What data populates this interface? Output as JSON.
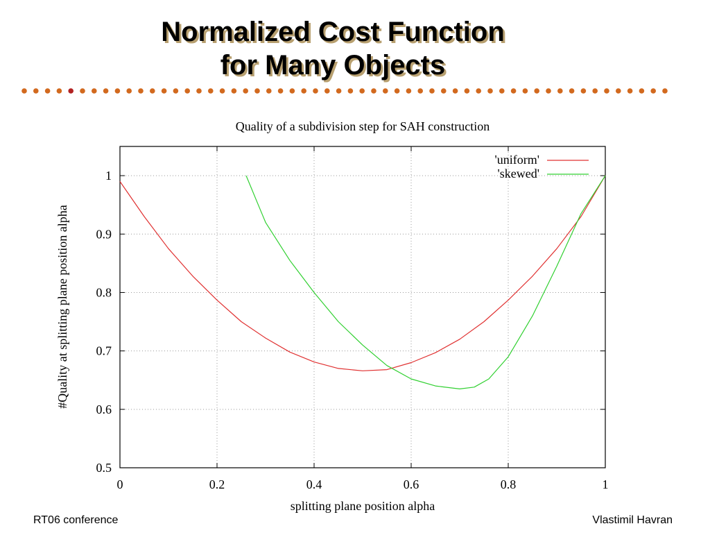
{
  "slide": {
    "title_line1": "Normalized Cost Function",
    "title_line2": "for Many Objects",
    "footer_left": "RT06 conference",
    "footer_right": "Vlastimil Havran",
    "accent_dot_color": "#d2691e",
    "accent_dot_dark": "#b22222"
  },
  "chart_data": {
    "type": "line",
    "title": "Quality of a subdivision step for SAH construction",
    "xlabel": "splitting plane position alpha",
    "ylabel": "#Quality at splitting plane position alpha",
    "xlim": [
      0,
      1
    ],
    "ylim": [
      0.5,
      1.05
    ],
    "xticks": [
      "0",
      "0.2",
      "0.4",
      "0.6",
      "0.8",
      "1"
    ],
    "yticks": [
      "0.5",
      "0.6",
      "0.7",
      "0.8",
      "0.9",
      "1"
    ],
    "grid": true,
    "legend_position": "top-right",
    "series": [
      {
        "name": "'uniform'",
        "color": "#e03030",
        "x": [
          0.0,
          0.05,
          0.1,
          0.15,
          0.2,
          0.25,
          0.3,
          0.35,
          0.4,
          0.45,
          0.5,
          0.55,
          0.6,
          0.65,
          0.7,
          0.75,
          0.8,
          0.85,
          0.9,
          0.95,
          1.0
        ],
        "y": [
          0.99,
          0.93,
          0.875,
          0.828,
          0.787,
          0.75,
          0.722,
          0.698,
          0.681,
          0.67,
          0.666,
          0.668,
          0.68,
          0.697,
          0.72,
          0.75,
          0.787,
          0.828,
          0.875,
          0.93,
          1.0
        ]
      },
      {
        "name": "'skewed'",
        "color": "#30d030",
        "x": [
          0.26,
          0.27,
          0.28,
          0.3,
          0.35,
          0.4,
          0.45,
          0.5,
          0.55,
          0.6,
          0.65,
          0.7,
          0.73,
          0.76,
          0.8,
          0.85,
          0.9,
          0.95,
          1.0
        ],
        "y": [
          1.0,
          0.98,
          0.96,
          0.92,
          0.855,
          0.8,
          0.75,
          0.71,
          0.675,
          0.652,
          0.64,
          0.635,
          0.638,
          0.652,
          0.69,
          0.76,
          0.845,
          0.935,
          1.0
        ]
      }
    ]
  }
}
